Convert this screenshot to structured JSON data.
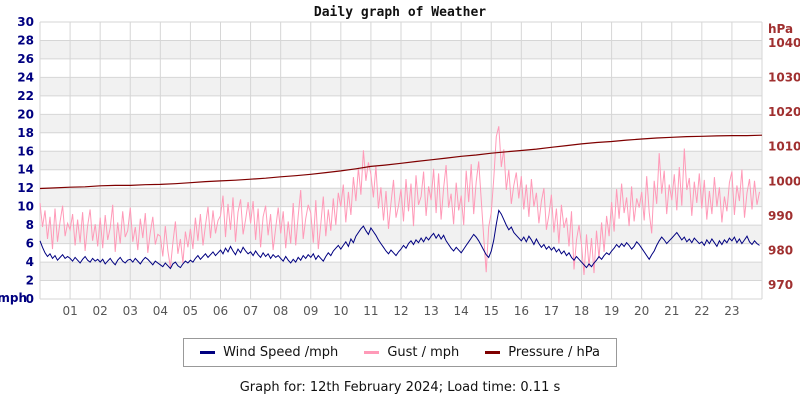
{
  "title": "Daily graph of Weather",
  "footer": "Graph for: 12th February 2024; Load time: 0.11 s",
  "legend": {
    "items": [
      {
        "label": "Wind Speed /mph",
        "color": "#000080"
      },
      {
        "label": "Gust / mph",
        "color": "#ff9ab8"
      },
      {
        "label": "Pressure / hPa",
        "color": "#7f0000"
      }
    ]
  },
  "chart_data": {
    "type": "line",
    "title": "Daily graph of Weather",
    "grid": true,
    "band_color": "#f1f1f1",
    "grid_color": "#d6d6d6",
    "legend_position": "bottom",
    "x_axis": {
      "range_hours": [
        0,
        24
      ],
      "tick_labels": [
        "01",
        "02",
        "03",
        "04",
        "05",
        "06",
        "07",
        "08",
        "09",
        "10",
        "11",
        "12",
        "13",
        "14",
        "15",
        "16",
        "17",
        "18",
        "19",
        "20",
        "21",
        "22",
        "23"
      ],
      "label_color": "#555555"
    },
    "y_left": {
      "label": "mph",
      "ticks": [
        30,
        28,
        26,
        24,
        22,
        20,
        18,
        16,
        14,
        12,
        10,
        8,
        6,
        4,
        2,
        0
      ],
      "range": [
        0,
        30
      ],
      "label_color": "#000080"
    },
    "y_right": {
      "label": "hPa",
      "ticks": [
        1040,
        1030,
        1020,
        1010,
        1000,
        990,
        980,
        970
      ],
      "range_at_plot": [
        966,
        1046
      ],
      "label_color": "#a03030"
    },
    "series": [
      {
        "name": "Wind Speed /mph",
        "color": "#000080",
        "axis": "left",
        "points_per_hour": 12,
        "values": [
          6.3,
          5.6,
          5.0,
          4.6,
          4.9,
          4.4,
          4.7,
          4.2,
          4.5,
          4.8,
          4.4,
          4.6,
          4.4,
          4.1,
          4.5,
          4.2,
          3.9,
          4.3,
          4.6,
          4.2,
          4.0,
          4.4,
          4.1,
          4.3,
          4.0,
          4.3,
          3.8,
          4.1,
          4.4,
          4.0,
          3.7,
          4.2,
          4.5,
          4.1,
          3.9,
          4.2,
          4.3,
          4.0,
          4.4,
          4.1,
          3.8,
          4.2,
          4.5,
          4.3,
          4.0,
          3.7,
          4.1,
          3.9,
          3.7,
          3.5,
          3.9,
          3.6,
          3.3,
          3.8,
          4.0,
          3.6,
          3.4,
          3.8,
          4.1,
          3.9,
          4.2,
          4.0,
          4.4,
          4.7,
          4.3,
          4.6,
          4.9,
          4.5,
          4.8,
          5.1,
          4.7,
          5.0,
          5.3,
          4.9,
          5.5,
          5.1,
          5.7,
          5.2,
          4.8,
          5.4,
          5.0,
          5.6,
          5.2,
          4.9,
          5.1,
          4.7,
          5.2,
          4.8,
          4.5,
          5.0,
          4.6,
          4.9,
          4.4,
          4.8,
          4.5,
          4.7,
          4.4,
          4.1,
          4.6,
          4.2,
          3.9,
          4.3,
          4.0,
          4.5,
          4.2,
          4.7,
          4.4,
          4.8,
          4.5,
          4.9,
          4.3,
          4.7,
          4.4,
          4.1,
          4.6,
          5.0,
          4.7,
          5.2,
          5.5,
          5.8,
          5.4,
          5.8,
          6.2,
          5.7,
          6.5,
          6.1,
          6.8,
          7.2,
          7.6,
          7.9,
          7.4,
          7.0,
          7.7,
          7.3,
          6.9,
          6.4,
          6.0,
          5.6,
          5.2,
          4.9,
          5.3,
          5.0,
          4.7,
          5.1,
          5.4,
          5.8,
          5.5,
          6.0,
          6.3,
          5.9,
          6.4,
          6.1,
          6.6,
          6.2,
          6.7,
          6.4,
          6.8,
          7.1,
          6.6,
          7.0,
          6.5,
          6.9,
          6.3,
          5.9,
          5.5,
          5.2,
          5.6,
          5.3,
          5.0,
          5.4,
          5.8,
          6.2,
          6.6,
          7.0,
          6.7,
          6.3,
          5.8,
          5.3,
          4.8,
          4.5,
          5.2,
          6.4,
          8.1,
          9.6,
          9.2,
          8.6,
          8.0,
          7.5,
          7.8,
          7.2,
          6.9,
          6.6,
          6.3,
          6.7,
          6.2,
          6.8,
          6.4,
          5.9,
          6.5,
          6.0,
          5.6,
          5.9,
          5.4,
          5.7,
          5.3,
          5.6,
          5.1,
          5.4,
          4.9,
          5.2,
          4.7,
          5.0,
          4.5,
          4.2,
          4.6,
          4.3,
          4.0,
          3.7,
          3.4,
          3.8,
          3.5,
          3.9,
          4.2,
          4.6,
          4.3,
          4.7,
          5.0,
          4.8,
          5.2,
          5.5,
          5.9,
          5.6,
          6.0,
          5.7,
          6.1,
          5.8,
          5.4,
          5.7,
          6.2,
          5.9,
          5.5,
          5.1,
          4.7,
          4.3,
          4.8,
          5.2,
          5.8,
          6.3,
          6.7,
          6.4,
          6.0,
          6.3,
          6.6,
          6.9,
          7.2,
          6.8,
          6.4,
          6.7,
          6.2,
          6.5,
          6.1,
          6.6,
          6.3,
          6.0,
          6.2,
          5.8,
          6.4,
          6.0,
          6.5,
          6.1,
          5.7,
          6.3,
          5.9,
          6.4,
          6.1,
          6.6,
          6.3,
          6.7,
          6.1,
          6.5,
          6.0,
          6.4,
          6.8,
          6.2,
          5.9,
          6.3,
          6.0,
          5.8
        ]
      },
      {
        "name": "Gust / mph",
        "color": "#ff9ab8",
        "axis": "left",
        "points_per_hour": 12,
        "values": [
          10.4,
          7.8,
          9.6,
          6.5,
          8.9,
          5.4,
          9.8,
          6.2,
          8.4,
          10.1,
          6.8,
          8.2,
          7.5,
          9.2,
          5.8,
          8.6,
          6.1,
          9.4,
          5.2,
          7.9,
          9.7,
          6.3,
          8.1,
          5.7,
          8.8,
          5.5,
          9.1,
          6.4,
          7.7,
          10.2,
          5.1,
          8.3,
          6.0,
          9.5,
          6.7,
          7.4,
          9.9,
          6.2,
          7.8,
          5.3,
          8.7,
          6.6,
          9.3,
          5.0,
          7.2,
          8.9,
          5.9,
          7.0,
          6.8,
          4.6,
          7.9,
          5.2,
          3.4,
          6.1,
          8.4,
          4.9,
          6.5,
          3.9,
          7.3,
          5.6,
          7.6,
          5.4,
          8.8,
          6.3,
          9.2,
          5.8,
          8.0,
          10.0,
          6.6,
          9.6,
          7.1,
          8.5,
          9.0,
          11.2,
          6.7,
          10.3,
          7.5,
          11.0,
          6.2,
          9.4,
          10.8,
          7.0,
          8.6,
          10.5,
          8.2,
          10.6,
          6.4,
          9.8,
          5.6,
          8.9,
          10.1,
          6.9,
          9.2,
          5.3,
          7.7,
          9.9,
          7.1,
          9.5,
          5.5,
          8.4,
          6.0,
          10.4,
          5.8,
          9.0,
          11.8,
          6.5,
          8.7,
          10.2,
          9.3,
          6.1,
          10.7,
          5.4,
          8.1,
          11.1,
          6.8,
          9.7,
          7.4,
          10.9,
          8.0,
          11.5,
          10.0,
          12.4,
          8.3,
          11.6,
          9.1,
          13.2,
          10.6,
          14.2,
          11.3,
          16.1,
          12.8,
          14.8,
          13.5,
          11.0,
          14.4,
          9.8,
          12.1,
          8.5,
          11.7,
          7.6,
          10.4,
          12.9,
          8.8,
          10.1,
          11.9,
          8.4,
          13.0,
          9.5,
          12.5,
          7.9,
          13.4,
          10.2,
          11.1,
          13.8,
          9.0,
          12.2,
          10.7,
          14.1,
          9.3,
          13.6,
          8.6,
          12.0,
          14.5,
          9.9,
          11.4,
          8.1,
          12.6,
          9.6,
          11.2,
          8.0,
          13.9,
          10.5,
          14.6,
          9.2,
          12.7,
          14.9,
          10.8,
          6.7,
          2.9,
          7.8,
          9.4,
          13.1,
          17.6,
          18.7,
          14.3,
          16.2,
          11.8,
          14.0,
          10.3,
          12.3,
          13.7,
          10.9,
          13.3,
          9.7,
          12.4,
          8.9,
          13.0,
          10.0,
          11.5,
          8.2,
          10.6,
          12.0,
          7.5,
          9.1,
          11.3,
          7.2,
          9.8,
          6.0,
          10.2,
          7.7,
          8.8,
          5.7,
          9.5,
          3.2,
          6.4,
          8.0,
          5.9,
          2.6,
          7.0,
          3.5,
          6.6,
          2.8,
          7.4,
          4.4,
          8.3,
          5.1,
          9.0,
          6.8,
          10.5,
          7.3,
          11.9,
          8.7,
          12.5,
          9.3,
          11.0,
          7.9,
          12.2,
          8.4,
          10.9,
          9.9,
          11.6,
          8.5,
          13.3,
          9.4,
          7.1,
          12.8,
          10.3,
          15.8,
          11.4,
          13.9,
          9.2,
          12.4,
          10.7,
          13.5,
          9.6,
          14.3,
          10.1,
          16.3,
          11.8,
          13.1,
          9.0,
          12.7,
          10.4,
          13.6,
          9.8,
          12.9,
          8.6,
          11.7,
          9.2,
          13.2,
          10.0,
          12.1,
          8.3,
          11.1,
          9.5,
          12.6,
          13.8,
          9.1,
          12.3,
          10.6,
          14.0,
          8.8,
          11.5,
          13.0,
          9.7,
          12.8,
          10.2,
          11.6
        ]
      },
      {
        "name": "Pressure / hPa",
        "color": "#7f0000",
        "axis": "right",
        "points_per_hour": 2,
        "values": [
          997.9,
          998.1,
          998.3,
          998.4,
          998.7,
          998.8,
          998.8,
          999.0,
          999.1,
          999.3,
          999.6,
          999.9,
          1000.1,
          1000.3,
          1000.6,
          1000.9,
          1001.3,
          1001.6,
          1002.0,
          1002.5,
          1003.0,
          1003.6,
          1004.3,
          1004.7,
          1005.2,
          1005.7,
          1006.2,
          1006.7,
          1007.2,
          1007.6,
          1008.1,
          1008.5,
          1008.9,
          1009.3,
          1009.8,
          1010.3,
          1010.8,
          1011.2,
          1011.5,
          1011.9,
          1012.2,
          1012.5,
          1012.7,
          1012.9,
          1013.0,
          1013.1,
          1013.2,
          1013.2,
          1013.3
        ]
      }
    ]
  }
}
